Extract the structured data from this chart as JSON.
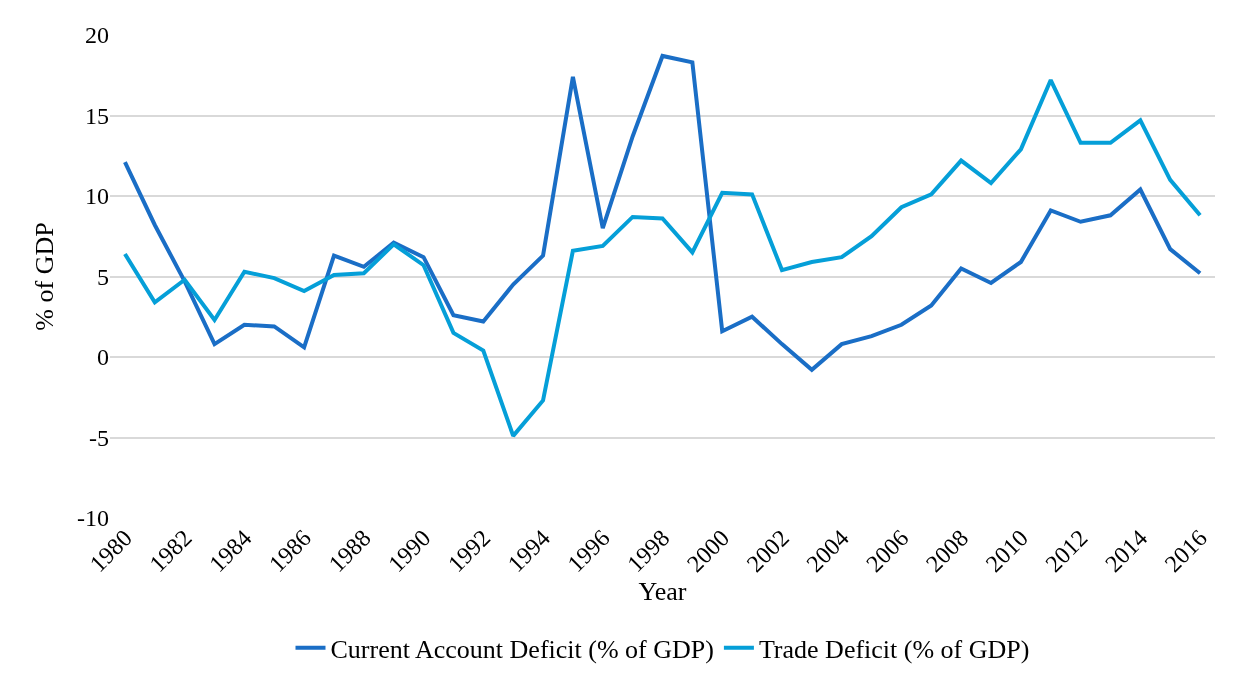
{
  "chart_data": {
    "type": "line",
    "xlabel": "Year",
    "ylabel": "% of GDP",
    "categories": [
      "1980",
      null,
      "1982",
      null,
      "1984",
      null,
      "1986",
      null,
      "1988",
      null,
      "1990",
      null,
      "1992",
      null,
      "1994",
      null,
      "1996",
      null,
      "1998",
      null,
      "2000",
      null,
      "2002",
      null,
      "2004",
      null,
      "2006",
      null,
      "2008",
      null,
      "2010",
      null,
      "2012",
      null,
      "2014",
      null,
      "2016"
    ],
    "series": [
      {
        "name": "Current Account Deficit (% of GDP)",
        "color": "#1a6ec6",
        "values": [
          12.1,
          8.2,
          4.7,
          0.8,
          2.0,
          1.9,
          0.6,
          6.3,
          5.6,
          7.1,
          6.2,
          2.6,
          2.2,
          4.5,
          6.3,
          17.4,
          8.0,
          13.7,
          18.7,
          18.3,
          1.6,
          2.5,
          0.8,
          -0.8,
          0.8,
          1.3,
          2.0,
          3.2,
          5.5,
          4.6,
          5.9,
          9.1,
          8.4,
          8.8,
          10.4,
          6.7,
          5.2
        ]
      },
      {
        "name": "Trade Deficit (% of GDP)",
        "color": "#059fd8",
        "values": [
          6.4,
          3.4,
          4.8,
          2.3,
          5.3,
          4.9,
          4.1,
          5.1,
          5.2,
          7.0,
          5.7,
          1.5,
          0.4,
          -4.9,
          -2.7,
          6.6,
          6.9,
          8.7,
          8.6,
          6.5,
          10.2,
          10.1,
          5.4,
          5.9,
          6.2,
          7.5,
          9.3,
          10.1,
          12.2,
          10.8,
          12.9,
          17.2,
          13.3,
          13.3,
          14.7,
          11.0,
          8.8
        ]
      }
    ],
    "ylim": [
      -10,
      20
    ],
    "yticks": [
      -10,
      -5,
      0,
      5,
      10,
      15,
      20
    ],
    "grid": "y",
    "legend": "bottom",
    "marker": "none",
    "line_style": "solid"
  }
}
